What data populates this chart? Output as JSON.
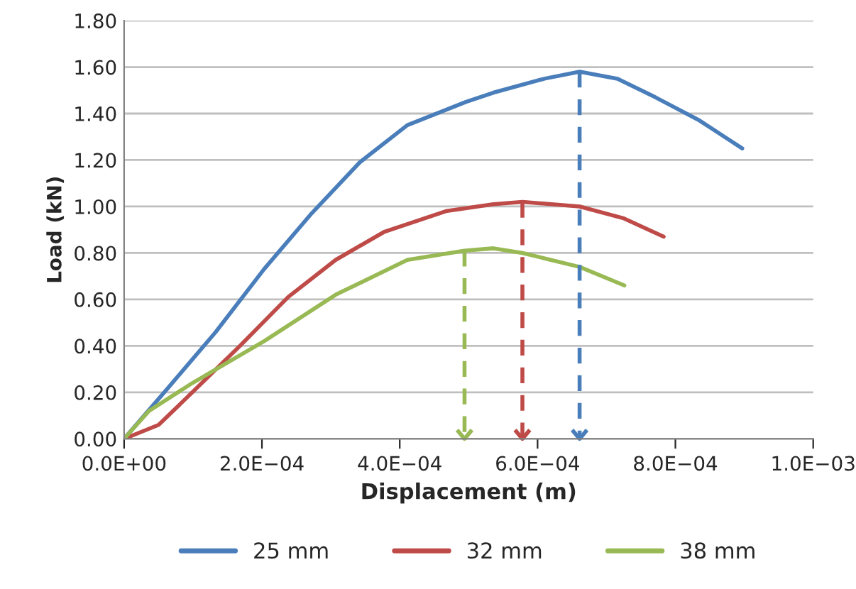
{
  "chart_data": {
    "type": "line",
    "xlabel": "Displacement (m)",
    "ylabel": "Load (kN)",
    "xlim": [
      0,
      0.001
    ],
    "ylim": [
      0,
      1.8
    ],
    "xticks": [
      {
        "value": 0,
        "label": "0.0E+00"
      },
      {
        "value": 0.0002,
        "label": "2.0E−04"
      },
      {
        "value": 0.0004,
        "label": "4.0E−04"
      },
      {
        "value": 0.0006,
        "label": "6.0E−04"
      },
      {
        "value": 0.0008,
        "label": "8.0E−04"
      },
      {
        "value": 0.001,
        "label": "1.0E−03"
      }
    ],
    "yticks": [
      {
        "value": 0,
        "label": "0.00"
      },
      {
        "value": 0.2,
        "label": "0.20"
      },
      {
        "value": 0.4,
        "label": "0.40"
      },
      {
        "value": 0.6,
        "label": "0.60"
      },
      {
        "value": 0.8,
        "label": "0.80"
      },
      {
        "value": 1.0,
        "label": "1.00"
      },
      {
        "value": 1.2,
        "label": "1.20"
      },
      {
        "value": 1.4,
        "label": "1.40"
      },
      {
        "value": 1.6,
        "label": "1.60"
      },
      {
        "value": 1.8,
        "label": "1.80"
      }
    ],
    "grid": "y",
    "legend": "bottom",
    "marker": "none",
    "line_style": "solid",
    "series": [
      {
        "name": "25 mm",
        "color": "#4a7ebb",
        "x": [
          0,
          6.4e-05,
          0.000133,
          0.000203,
          0.000272,
          0.000342,
          0.000411,
          0.000496,
          0.000536,
          0.00061,
          0.000661,
          0.000716,
          0.000771,
          0.000835,
          0.000897
        ],
        "values": [
          0,
          0.22,
          0.46,
          0.73,
          0.97,
          1.19,
          1.35,
          1.45,
          1.49,
          1.55,
          1.58,
          1.55,
          1.47,
          1.37,
          1.25
        ]
      },
      {
        "name": "32 mm",
        "color": "#be4b48",
        "x": [
          0,
          5e-05,
          9.9e-05,
          0.000168,
          0.000238,
          0.000307,
          0.000377,
          0.000467,
          0.000536,
          0.000578,
          0.000661,
          0.000724,
          0.000783
        ],
        "values": [
          0,
          0.06,
          0.2,
          0.4,
          0.61,
          0.77,
          0.89,
          0.98,
          1.01,
          1.02,
          1.0,
          0.95,
          0.87
        ]
      },
      {
        "name": "38 mm",
        "color": "#98b954",
        "x": [
          0,
          3.6e-05,
          9.9e-05,
          0.000203,
          0.000307,
          0.000411,
          0.000494,
          0.000536,
          0.000578,
          0.000661,
          0.000726
        ],
        "values": [
          0,
          0.12,
          0.24,
          0.42,
          0.62,
          0.77,
          0.81,
          0.82,
          0.8,
          0.74,
          0.66
        ]
      },
      {
        "color": "#98b954",
        "line_style": "dashed",
        "x": [
          0.000494,
          0.000494
        ],
        "values": [
          0.81,
          0
        ]
      },
      {
        "color": "#be4b48",
        "line_style": "dashed",
        "x": [
          0.000578,
          0.000578
        ],
        "values": [
          1.02,
          0
        ]
      },
      {
        "color": "#4a7ebb",
        "line_style": "dashed",
        "x": [
          0.000661,
          0.000661
        ],
        "values": [
          1.58,
          0
        ]
      }
    ]
  }
}
